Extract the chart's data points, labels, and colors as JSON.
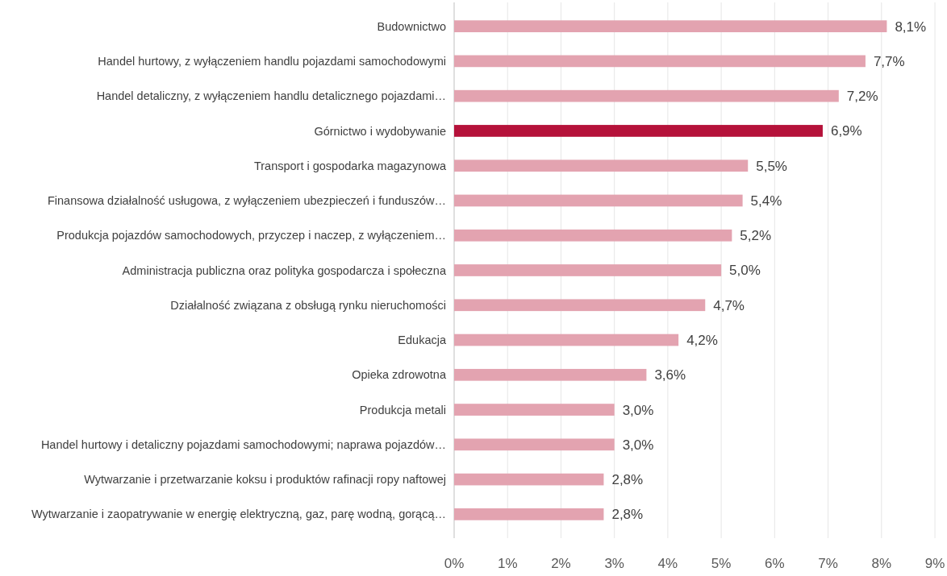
{
  "chart_data": {
    "type": "bar",
    "orientation": "horizontal",
    "categories": [
      "Budownictwo",
      "Handel hurtowy, z wyłączeniem handlu pojazdami samochodowymi",
      "Handel detaliczny, z wyłączeniem handlu detalicznego pojazdami…",
      "Górnictwo i wydobywanie",
      "Transport i gospodarka magazynowa",
      "Finansowa działalność usługowa, z wyłączeniem ubezpieczeń i funduszów…",
      "Produkcja pojazdów samochodowych, przyczep i naczep, z wyłączeniem…",
      "Administracja publiczna oraz polityka gospodarcza i społeczna",
      "Działalność związana z obsługą rynku nieruchomości",
      "Edukacja",
      "Opieka zdrowotna",
      "Produkcja metali",
      "Handel hurtowy i detaliczny pojazdami samochodowymi; naprawa pojazdów…",
      "Wytwarzanie i przetwarzanie koksu i produktów rafinacji ropy naftowej",
      "Wytwarzanie i zaopatrywanie w energię elektryczną, gaz, parę wodną, gorącą…"
    ],
    "values": [
      8.1,
      7.7,
      7.2,
      6.9,
      5.5,
      5.4,
      5.2,
      5.0,
      4.7,
      4.2,
      3.6,
      3.0,
      3.0,
      2.8,
      2.8
    ],
    "value_labels": [
      "8,1%",
      "7,7%",
      "7,2%",
      "6,9%",
      "5,5%",
      "5,4%",
      "5,2%",
      "5,0%",
      "4,7%",
      "4,2%",
      "3,6%",
      "3,0%",
      "3,0%",
      "2,8%",
      "2,8%"
    ],
    "colors": [
      "#e3a3b0",
      "#e3a3b0",
      "#e3a3b0",
      "#b5123a",
      "#e3a3b0",
      "#e3a3b0",
      "#e3a3b0",
      "#e3a3b0",
      "#e3a3b0",
      "#e3a3b0",
      "#e3a3b0",
      "#e3a3b0",
      "#e3a3b0",
      "#e3a3b0",
      "#e3a3b0"
    ],
    "xlim": [
      0,
      9
    ],
    "xticks": [
      {
        "value": 0,
        "label": "0%"
      },
      {
        "value": 1,
        "label": "1%"
      },
      {
        "value": 2,
        "label": "2%"
      },
      {
        "value": 3,
        "label": "3%"
      },
      {
        "value": 4,
        "label": "4%"
      },
      {
        "value": 5,
        "label": "5%"
      },
      {
        "value": 6,
        "label": "6%"
      },
      {
        "value": 7,
        "label": "7%"
      },
      {
        "value": 8,
        "label": "8%"
      },
      {
        "value": 9,
        "label": "9%"
      }
    ],
    "grid": "x"
  }
}
